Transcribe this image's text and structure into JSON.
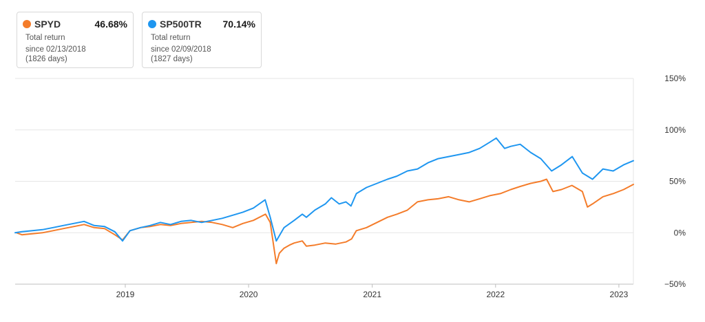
{
  "cards": [
    {
      "ticker": "SPYD",
      "value": "46.68%",
      "metric": "Total return",
      "since": "since 02/13/2018",
      "days": "(1826 days)",
      "color": "#f47c2a"
    },
    {
      "ticker": "SP500TR",
      "value": "70.14%",
      "metric": "Total return",
      "since": "since 02/09/2018",
      "days": "(1827 days)",
      "color": "#1e96f0"
    }
  ],
  "chart_data": {
    "type": "line",
    "y_unit": "%",
    "ylim": [
      -50,
      150
    ],
    "yticks": [
      150,
      100,
      50,
      0,
      -50
    ],
    "ytick_labels": [
      "150%",
      "100%",
      "50%",
      "0%",
      "−50%"
    ],
    "xlim": [
      "2018-02-09",
      "2023-02-13"
    ],
    "xticks": [
      "2019-01-01",
      "2020-01-01",
      "2021-01-01",
      "2022-01-01",
      "2023-01-01"
    ],
    "xtick_labels": [
      "2019",
      "2020",
      "2021",
      "2022",
      "2023"
    ],
    "grid": "horizontal",
    "legend": "top-left cards",
    "series": [
      {
        "name": "SPYD",
        "color": "#f47c2a",
        "x": [
          "2018-02-13",
          "2018-03-01",
          "2018-04-01",
          "2018-05-01",
          "2018-06-01",
          "2018-07-01",
          "2018-08-01",
          "2018-09-01",
          "2018-10-01",
          "2018-11-01",
          "2018-12-01",
          "2018-12-24",
          "2019-01-15",
          "2019-02-15",
          "2019-03-15",
          "2019-04-15",
          "2019-05-15",
          "2019-06-15",
          "2019-07-15",
          "2019-08-15",
          "2019-09-15",
          "2019-10-15",
          "2019-11-15",
          "2019-12-15",
          "2020-01-15",
          "2020-02-20",
          "2020-03-05",
          "2020-03-23",
          "2020-04-01",
          "2020-04-15",
          "2020-05-01",
          "2020-05-15",
          "2020-06-08",
          "2020-06-20",
          "2020-07-15",
          "2020-08-15",
          "2020-09-15",
          "2020-10-15",
          "2020-11-01",
          "2020-11-15",
          "2020-12-15",
          "2021-01-15",
          "2021-02-15",
          "2021-03-15",
          "2021-04-15",
          "2021-05-15",
          "2021-06-15",
          "2021-07-15",
          "2021-08-15",
          "2021-09-15",
          "2021-10-15",
          "2021-11-15",
          "2021-12-15",
          "2022-01-15",
          "2022-02-15",
          "2022-03-15",
          "2022-04-15",
          "2022-05-15",
          "2022-06-01",
          "2022-06-20",
          "2022-07-15",
          "2022-08-15",
          "2022-09-15",
          "2022-09-30",
          "2022-10-15",
          "2022-11-15",
          "2022-12-15",
          "2023-01-15",
          "2023-02-13"
        ],
        "y": [
          0,
          -2,
          -1,
          0,
          2,
          4,
          6,
          8,
          5,
          4,
          -2,
          -7,
          2,
          5,
          6,
          8,
          7,
          9,
          10,
          11,
          10,
          8,
          5,
          9,
          12,
          18,
          10,
          -30,
          -20,
          -15,
          -12,
          -10,
          -8,
          -13,
          -12,
          -10,
          -11,
          -9,
          -6,
          2,
          5,
          10,
          15,
          18,
          22,
          30,
          32,
          33,
          35,
          32,
          30,
          33,
          36,
          38,
          42,
          45,
          48,
          50,
          52,
          40,
          42,
          46,
          40,
          25,
          28,
          35,
          38,
          42,
          47
        ]
      },
      {
        "name": "SP500TR",
        "color": "#1e96f0",
        "x": [
          "2018-02-09",
          "2018-03-01",
          "2018-04-01",
          "2018-05-01",
          "2018-06-01",
          "2018-07-01",
          "2018-08-01",
          "2018-09-01",
          "2018-10-01",
          "2018-11-01",
          "2018-12-01",
          "2018-12-24",
          "2019-01-15",
          "2019-02-15",
          "2019-03-15",
          "2019-04-15",
          "2019-05-15",
          "2019-06-15",
          "2019-07-15",
          "2019-08-15",
          "2019-09-15",
          "2019-10-15",
          "2019-11-15",
          "2019-12-15",
          "2020-01-15",
          "2020-02-19",
          "2020-03-05",
          "2020-03-23",
          "2020-04-15",
          "2020-05-15",
          "2020-06-08",
          "2020-06-20",
          "2020-07-15",
          "2020-08-15",
          "2020-09-02",
          "2020-09-25",
          "2020-10-15",
          "2020-10-30",
          "2020-11-15",
          "2020-12-15",
          "2021-01-15",
          "2021-02-15",
          "2021-03-15",
          "2021-04-15",
          "2021-05-15",
          "2021-06-15",
          "2021-07-15",
          "2021-08-15",
          "2021-09-15",
          "2021-10-15",
          "2021-11-15",
          "2021-12-15",
          "2022-01-03",
          "2022-01-28",
          "2022-02-15",
          "2022-03-15",
          "2022-04-15",
          "2022-05-15",
          "2022-06-16",
          "2022-07-15",
          "2022-08-16",
          "2022-09-15",
          "2022-09-30",
          "2022-10-15",
          "2022-11-15",
          "2022-12-15",
          "2023-01-15",
          "2023-02-13"
        ],
        "y": [
          0,
          1,
          2,
          3,
          5,
          7,
          9,
          11,
          7,
          6,
          1,
          -8,
          2,
          5,
          7,
          10,
          8,
          11,
          12,
          10,
          12,
          14,
          17,
          20,
          24,
          32,
          15,
          -8,
          5,
          12,
          18,
          15,
          22,
          28,
          34,
          28,
          30,
          26,
          38,
          44,
          48,
          52,
          55,
          60,
          62,
          68,
          72,
          74,
          76,
          78,
          82,
          88,
          92,
          82,
          84,
          86,
          78,
          72,
          60,
          66,
          74,
          58,
          55,
          52,
          62,
          60,
          66,
          70
        ]
      }
    ]
  }
}
